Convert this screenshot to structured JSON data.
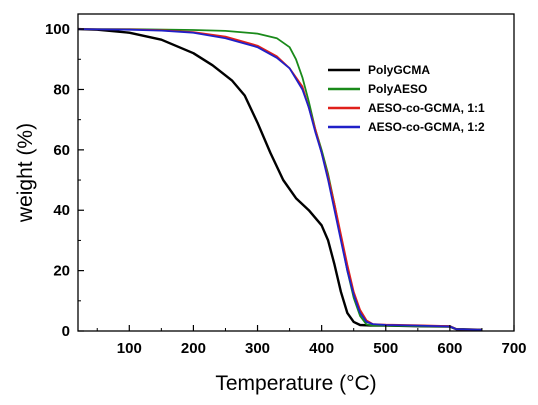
{
  "chart_data": {
    "type": "line",
    "title": "",
    "xlabel": "Temperature (°C)",
    "ylabel": "weight (%)",
    "xlim": [
      20,
      700
    ],
    "ylim": [
      0,
      105
    ],
    "xticks": [
      100,
      200,
      300,
      400,
      500,
      600,
      700
    ],
    "yticks": [
      0,
      20,
      40,
      60,
      80,
      100
    ],
    "grid": false,
    "legend_position": "top-right",
    "series": [
      {
        "name": "PolyGCMA",
        "color": "#000000",
        "x": [
          20,
          50,
          100,
          150,
          200,
          230,
          260,
          280,
          300,
          320,
          340,
          360,
          380,
          400,
          410,
          420,
          430,
          440,
          450,
          460,
          480,
          500,
          550,
          600,
          610,
          630,
          650
        ],
        "y": [
          100,
          99.8,
          98.8,
          96.5,
          92,
          88,
          83,
          78,
          69,
          59,
          50,
          44,
          40,
          35,
          30,
          22,
          13,
          6,
          3,
          2,
          1.8,
          1.8,
          1.6,
          1.5,
          0.6,
          0.5,
          0.4
        ]
      },
      {
        "name": "PolyAESO",
        "color": "#1a8a1a",
        "x": [
          20,
          100,
          200,
          250,
          300,
          330,
          350,
          360,
          370,
          380,
          390,
          400,
          410,
          420,
          430,
          440,
          450,
          460,
          470,
          480,
          500,
          550,
          600,
          610,
          630,
          650
        ],
        "y": [
          100,
          100,
          99.7,
          99.4,
          98.5,
          97,
          94,
          90,
          84,
          76,
          67,
          60,
          52,
          42,
          31,
          20,
          11,
          5,
          2.2,
          1.8,
          1.8,
          1.6,
          1.5,
          0.6,
          0.5,
          0.4
        ]
      },
      {
        "name": "AESO-co-GCMA, 1:1",
        "color": "#e0201a",
        "x": [
          20,
          100,
          150,
          200,
          250,
          300,
          330,
          350,
          370,
          380,
          390,
          400,
          410,
          420,
          430,
          440,
          450,
          460,
          470,
          480,
          500,
          550,
          600,
          610,
          630,
          650
        ],
        "y": [
          100,
          99.9,
          99.6,
          99,
          97.5,
          94.5,
          91,
          87,
          81,
          74,
          67,
          59,
          51,
          42,
          32,
          22,
          13,
          7,
          3.5,
          2.3,
          2.1,
          1.9,
          1.6,
          0.6,
          0.5,
          0.4
        ]
      },
      {
        "name": "AESO-co-GCMA, 1:2",
        "color": "#2020c8",
        "x": [
          20,
          100,
          150,
          200,
          250,
          300,
          330,
          350,
          370,
          380,
          390,
          400,
          410,
          420,
          430,
          440,
          450,
          460,
          470,
          480,
          500,
          550,
          600,
          610,
          630,
          650
        ],
        "y": [
          100,
          99.8,
          99.5,
          98.8,
          97,
          94,
          90.5,
          87,
          80,
          74,
          66,
          59,
          50,
          40,
          30,
          20,
          12,
          6,
          3,
          2.3,
          2,
          1.8,
          1.5,
          0.6,
          0.5,
          0.4
        ]
      }
    ]
  }
}
